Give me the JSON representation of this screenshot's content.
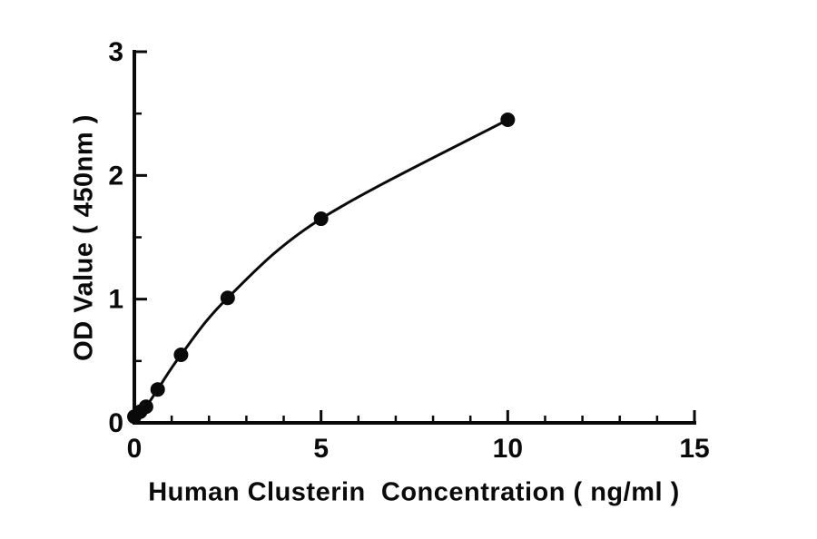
{
  "chart_data": {
    "type": "scatter",
    "title": "",
    "xlabel": "Human Clusterin  Concentration ( ng/ml )",
    "ylabel": "OD Value ( 450nm )",
    "points": [
      {
        "x": 0,
        "y": 0.05
      },
      {
        "x": 0.156,
        "y": 0.09
      },
      {
        "x": 0.313,
        "y": 0.13
      },
      {
        "x": 0.625,
        "y": 0.27
      },
      {
        "x": 1.25,
        "y": 0.55
      },
      {
        "x": 2.5,
        "y": 1.01
      },
      {
        "x": 5,
        "y": 1.65
      },
      {
        "x": 10,
        "y": 2.45
      }
    ],
    "xlim": [
      0,
      15
    ],
    "ylim": [
      0,
      3
    ],
    "x_ticks": {
      "major": [
        0,
        5,
        10,
        15
      ],
      "minor_step": 1
    },
    "y_ticks": {
      "major": [
        0,
        1,
        2,
        3
      ],
      "minor_step": 0.5
    },
    "curve": "smooth",
    "grid": false,
    "legend": "none",
    "colors": {
      "axis": "#0a0a0a",
      "line": "#0a0a0a",
      "marker": "#0a0a0a",
      "background": "#ffffff"
    }
  }
}
